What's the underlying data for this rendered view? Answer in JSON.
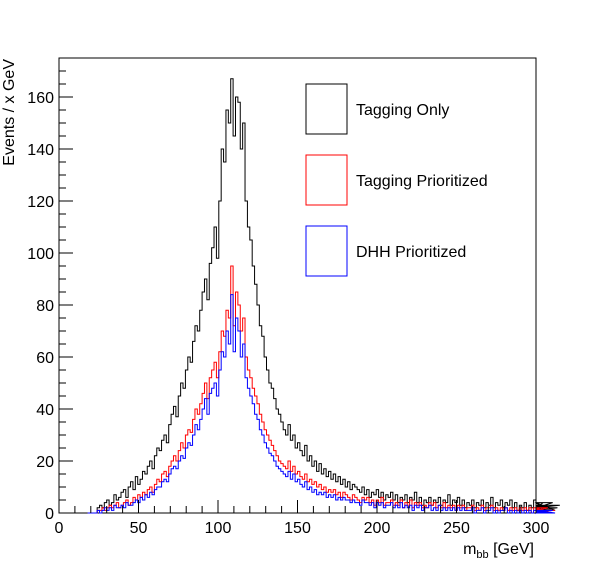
{
  "chart_data": {
    "type": "line",
    "histogram": true,
    "xlabel": "m",
    "xlabel_sub": "bb",
    "xlabel_unit": " [GeV]",
    "ylabel": "Events / x GeV",
    "xlim": [
      0,
      300
    ],
    "ylim": [
      0,
      175
    ],
    "grid": false,
    "legend_position": "top-right",
    "x_ticks": [
      0,
      50,
      100,
      150,
      200,
      250,
      300
    ],
    "y_ticks": [
      0,
      20,
      40,
      60,
      80,
      100,
      120,
      140,
      160
    ],
    "x_tick_labels": [
      "0",
      "50",
      "100",
      "150",
      "200",
      "250",
      "300"
    ],
    "y_tick_labels": [
      "0",
      "20",
      "40",
      "60",
      "80",
      "100",
      "120",
      "140",
      "160"
    ],
    "bin_width": 1.5,
    "bin_start": 18,
    "series": [
      {
        "name": "Tagging Only",
        "color": "#000000",
        "values": [
          0,
          0,
          0,
          0,
          2,
          3,
          2,
          4,
          5,
          3,
          4,
          7,
          5,
          6,
          8,
          9,
          6,
          10,
          12,
          9,
          14,
          11,
          13,
          16,
          15,
          18,
          20,
          17,
          22,
          25,
          24,
          28,
          30,
          27,
          34,
          38,
          41,
          37,
          45,
          50,
          48,
          55,
          60,
          58,
          66,
          72,
          70,
          78,
          85,
          90,
          82,
          96,
          102,
          110,
          98,
          120,
          140,
          135,
          155,
          150,
          167,
          145,
          160,
          158,
          140,
          150,
          120,
          110,
          105,
          95,
          88,
          80,
          72,
          68,
          60,
          55,
          50,
          48,
          44,
          40,
          38,
          35,
          32,
          30,
          34,
          28,
          30,
          25,
          27,
          24,
          22,
          26,
          20,
          22,
          18,
          20,
          16,
          19,
          15,
          17,
          14,
          16,
          13,
          15,
          12,
          14,
          11,
          13,
          10,
          12,
          9,
          11,
          10,
          9,
          8,
          10,
          7,
          9,
          6,
          8,
          7,
          9,
          6,
          8,
          5,
          7,
          6,
          8,
          5,
          7,
          4,
          6,
          5,
          7,
          4,
          6,
          5,
          8,
          4,
          6,
          3,
          5,
          4,
          6,
          3,
          5,
          4,
          6,
          3,
          5,
          4,
          7,
          3,
          5,
          4,
          6,
          3,
          5,
          2,
          4,
          3,
          5,
          2,
          4,
          3,
          5,
          2,
          4,
          3,
          6,
          2,
          4,
          3,
          5,
          2,
          4,
          3,
          5,
          2,
          4,
          1,
          3,
          2,
          4,
          1,
          3,
          2,
          5,
          1,
          3,
          2,
          4,
          1,
          3,
          2,
          4,
          1,
          2,
          3
        ]
      },
      {
        "name": "Tagging Prioritized",
        "color": "#ff0000",
        "values": [
          0,
          0,
          0,
          0,
          1,
          1,
          2,
          1,
          2,
          3,
          2,
          3,
          4,
          2,
          3,
          4,
          5,
          3,
          4,
          6,
          5,
          7,
          6,
          8,
          7,
          9,
          10,
          8,
          11,
          13,
          12,
          15,
          16,
          14,
          18,
          20,
          22,
          20,
          24,
          27,
          25,
          30,
          32,
          31,
          36,
          40,
          38,
          42,
          46,
          50,
          44,
          52,
          55,
          58,
          52,
          62,
          70,
          68,
          78,
          75,
          95,
          72,
          85,
          80,
          70,
          75,
          60,
          55,
          52,
          48,
          45,
          42,
          38,
          35,
          32,
          30,
          28,
          26,
          24,
          22,
          20,
          19,
          18,
          17,
          20,
          16,
          18,
          15,
          16,
          14,
          13,
          15,
          12,
          13,
          11,
          12,
          10,
          11,
          9,
          10,
          8,
          9,
          8,
          9,
          7,
          8,
          6,
          8,
          7,
          6,
          5,
          7,
          6,
          5,
          4,
          6,
          5,
          6,
          4,
          5,
          3,
          5,
          4,
          6,
          3,
          4,
          4,
          5,
          3,
          4,
          3,
          5,
          2,
          4,
          3,
          5,
          2,
          4,
          3,
          4,
          2,
          3,
          2,
          4,
          3,
          4,
          2,
          3,
          2,
          4,
          2,
          3,
          2,
          3,
          1,
          3,
          2,
          3,
          1,
          2,
          2,
          3,
          1,
          2,
          1,
          3,
          1,
          2,
          2,
          3,
          1,
          2,
          1,
          2,
          1,
          2,
          1,
          2,
          1,
          2,
          1,
          2,
          1,
          2,
          1,
          2,
          0,
          2,
          1,
          2,
          0,
          1,
          1,
          2,
          0,
          1,
          1
        ]
      },
      {
        "name": "DHH Prioritized",
        "color": "#0000ff",
        "values": [
          0,
          0,
          0,
          0,
          1,
          0,
          1,
          2,
          1,
          2,
          1,
          3,
          2,
          2,
          3,
          2,
          4,
          3,
          3,
          4,
          5,
          4,
          6,
          5,
          7,
          6,
          8,
          7,
          9,
          10,
          10,
          12,
          13,
          12,
          15,
          17,
          18,
          17,
          20,
          22,
          21,
          25,
          27,
          26,
          30,
          34,
          32,
          36,
          40,
          44,
          38,
          46,
          48,
          50,
          45,
          55,
          62,
          60,
          70,
          65,
          84,
          62,
          75,
          70,
          60,
          65,
          52,
          48,
          45,
          42,
          38,
          36,
          32,
          30,
          27,
          25,
          23,
          22,
          20,
          18,
          17,
          16,
          15,
          14,
          16,
          13,
          15,
          12,
          13,
          11,
          10,
          12,
          9,
          10,
          8,
          9,
          7,
          8,
          7,
          8,
          6,
          7,
          6,
          7,
          5,
          6,
          5,
          6,
          5,
          5,
          4,
          5,
          4,
          4,
          3,
          5,
          4,
          4,
          3,
          4,
          2,
          4,
          3,
          4,
          2,
          3,
          3,
          4,
          2,
          3,
          2,
          4,
          2,
          3,
          2,
          3,
          1,
          3,
          2,
          3,
          1,
          2,
          2,
          3,
          1,
          2,
          1,
          3,
          1,
          2,
          1,
          2,
          1,
          2,
          1,
          2,
          1,
          2,
          1,
          1,
          1,
          2,
          0,
          1,
          1,
          2,
          0,
          1,
          1,
          2,
          0,
          1,
          0,
          1,
          1,
          2,
          0,
          1,
          0,
          1,
          0,
          1,
          0,
          1,
          0,
          1,
          0,
          1,
          0,
          1,
          0,
          1,
          0,
          1,
          0,
          1,
          0
        ]
      }
    ]
  }
}
